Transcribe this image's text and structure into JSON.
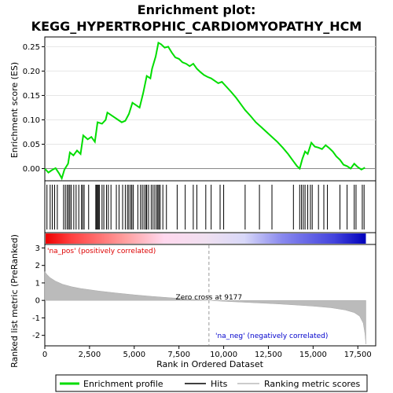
{
  "chart_data": {
    "type": "line",
    "title_line1": "Enrichment plot:",
    "title_line2": "KEGG_HYPERTROPHIC_CARDIOMYOPATHY_HCM",
    "xlabel": "Rank in Ordered Dataset",
    "ylabel_top": "Enrichment score (ES)",
    "ylabel_bottom": "Ranked list metric (PreRanked)",
    "xlim": [
      0,
      18500
    ],
    "x_ticks": [
      0,
      2500,
      5000,
      7500,
      10000,
      12500,
      15000,
      17500
    ],
    "x_tick_labels": [
      "0",
      "2,500",
      "5,000",
      "7,500",
      "10,000",
      "12,500",
      "15,000",
      "17,500"
    ],
    "es_ylim": [
      -0.025,
      0.27
    ],
    "es_ticks": [
      0.0,
      0.05,
      0.1,
      0.15,
      0.2,
      0.25
    ],
    "es_tick_labels": [
      "0.00",
      "0.05",
      "0.10",
      "0.15",
      "0.20",
      "0.25"
    ],
    "metric_ylim": [
      -2.6,
      3.2
    ],
    "metric_ticks": [
      -2,
      -1,
      0,
      1,
      2,
      3
    ],
    "metric_tick_labels": [
      "-2",
      "-1",
      "0",
      "1",
      "2",
      "3"
    ],
    "es_profile": [
      [
        0,
        0.0
      ],
      [
        200,
        -0.008
      ],
      [
        400,
        -0.003
      ],
      [
        600,
        0.001
      ],
      [
        800,
        -0.01
      ],
      [
        950,
        -0.02
      ],
      [
        1100,
        -0.002
      ],
      [
        1300,
        0.01
      ],
      [
        1400,
        0.033
      ],
      [
        1600,
        0.027
      ],
      [
        1800,
        0.037
      ],
      [
        2000,
        0.03
      ],
      [
        2150,
        0.068
      ],
      [
        2400,
        0.06
      ],
      [
        2600,
        0.065
      ],
      [
        2800,
        0.055
      ],
      [
        2950,
        0.095
      ],
      [
        3200,
        0.092
      ],
      [
        3400,
        0.1
      ],
      [
        3500,
        0.115
      ],
      [
        3700,
        0.11
      ],
      [
        3900,
        0.105
      ],
      [
        4100,
        0.1
      ],
      [
        4300,
        0.095
      ],
      [
        4500,
        0.098
      ],
      [
        4700,
        0.112
      ],
      [
        4900,
        0.135
      ],
      [
        5100,
        0.13
      ],
      [
        5300,
        0.125
      ],
      [
        5500,
        0.155
      ],
      [
        5700,
        0.19
      ],
      [
        5900,
        0.185
      ],
      [
        6000,
        0.205
      ],
      [
        6200,
        0.23
      ],
      [
        6350,
        0.258
      ],
      [
        6500,
        0.255
      ],
      [
        6700,
        0.248
      ],
      [
        6900,
        0.25
      ],
      [
        7100,
        0.238
      ],
      [
        7300,
        0.228
      ],
      [
        7500,
        0.225
      ],
      [
        7700,
        0.218
      ],
      [
        7900,
        0.215
      ],
      [
        8100,
        0.21
      ],
      [
        8300,
        0.215
      ],
      [
        8500,
        0.205
      ],
      [
        8700,
        0.198
      ],
      [
        8900,
        0.192
      ],
      [
        9100,
        0.188
      ],
      [
        9300,
        0.185
      ],
      [
        9500,
        0.18
      ],
      [
        9700,
        0.175
      ],
      [
        9900,
        0.178
      ],
      [
        10100,
        0.17
      ],
      [
        10400,
        0.158
      ],
      [
        10700,
        0.145
      ],
      [
        11000,
        0.13
      ],
      [
        11200,
        0.12
      ],
      [
        11500,
        0.108
      ],
      [
        11800,
        0.095
      ],
      [
        12100,
        0.085
      ],
      [
        12400,
        0.075
      ],
      [
        12700,
        0.065
      ],
      [
        13000,
        0.055
      ],
      [
        13300,
        0.043
      ],
      [
        13600,
        0.03
      ],
      [
        13900,
        0.015
      ],
      [
        14100,
        0.005
      ],
      [
        14250,
        0.0
      ],
      [
        14400,
        0.02
      ],
      [
        14550,
        0.035
      ],
      [
        14700,
        0.03
      ],
      [
        14900,
        0.053
      ],
      [
        15100,
        0.045
      ],
      [
        15300,
        0.043
      ],
      [
        15500,
        0.04
      ],
      [
        15700,
        0.048
      ],
      [
        15900,
        0.042
      ],
      [
        16100,
        0.035
      ],
      [
        16300,
        0.025
      ],
      [
        16500,
        0.018
      ],
      [
        16700,
        0.008
      ],
      [
        16900,
        0.005
      ],
      [
        17100,
        0.0
      ],
      [
        17300,
        0.01
      ],
      [
        17500,
        0.003
      ],
      [
        17700,
        -0.002
      ],
      [
        17900,
        0.002
      ]
    ],
    "hits": [
      120,
      300,
      420,
      550,
      700,
      1050,
      1150,
      1250,
      1330,
      1400,
      1480,
      1620,
      1750,
      1900,
      2050,
      2120,
      2200,
      2450,
      2850,
      2900,
      2950,
      3000,
      3050,
      3200,
      3300,
      3450,
      3550,
      3700,
      4000,
      4150,
      4350,
      4500,
      4620,
      4700,
      4800,
      4870,
      4950,
      5200,
      5350,
      5450,
      5550,
      5650,
      5700,
      5800,
      5950,
      6050,
      6150,
      6250,
      6320,
      6380,
      6450,
      6600,
      6800,
      7400,
      7850,
      8300,
      8500,
      9000,
      9300,
      9800,
      10000,
      11200,
      12000,
      12700,
      13900,
      14250,
      14350,
      14450,
      14550,
      14700,
      14850,
      14950,
      15300,
      15600,
      15800,
      16500,
      16900,
      17300,
      17400,
      17750,
      17850
    ],
    "metric_curve": [
      [
        0,
        1.65
      ],
      [
        100,
        1.5
      ],
      [
        300,
        1.3
      ],
      [
        600,
        1.1
      ],
      [
        1000,
        0.92
      ],
      [
        1500,
        0.78
      ],
      [
        2000,
        0.68
      ],
      [
        3000,
        0.54
      ],
      [
        4000,
        0.42
      ],
      [
        5000,
        0.32
      ],
      [
        6000,
        0.23
      ],
      [
        7000,
        0.15
      ],
      [
        8000,
        0.08
      ],
      [
        9177,
        0.0
      ],
      [
        10000,
        -0.05
      ],
      [
        11000,
        -0.1
      ],
      [
        12000,
        -0.15
      ],
      [
        13000,
        -0.2
      ],
      [
        14000,
        -0.26
      ],
      [
        15000,
        -0.33
      ],
      [
        16000,
        -0.42
      ],
      [
        16800,
        -0.55
      ],
      [
        17300,
        -0.7
      ],
      [
        17600,
        -0.9
      ],
      [
        17800,
        -1.3
      ],
      [
        17900,
        -1.9
      ],
      [
        17950,
        -2.5
      ]
    ],
    "zero_cross": 9177,
    "zero_cross_label": "Zero cross at 9177",
    "pos_label": "'na_pos' (positively correlated)",
    "neg_label": "'na_neg' (negatively correlated)",
    "legend": [
      "Enrichment profile",
      "Hits",
      "Ranking metric scores"
    ],
    "colors": {
      "profile": "#00dd00",
      "hits": "#000000",
      "metric": "#bbbbbb",
      "pos": "#ff0000",
      "neg": "#0000ff",
      "zero": "#999999"
    }
  }
}
